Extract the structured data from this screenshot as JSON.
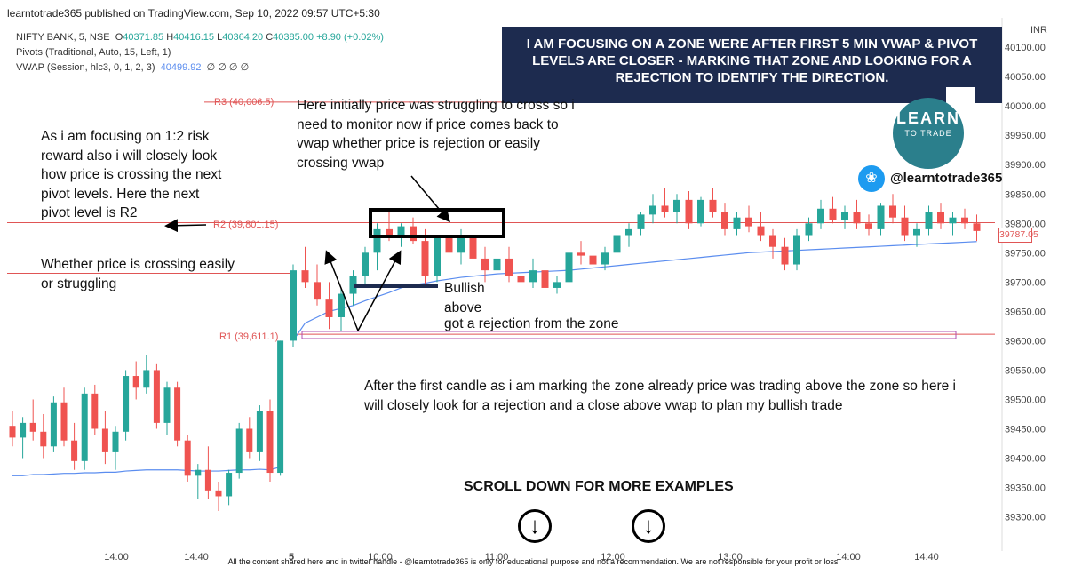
{
  "header": "learntotrade365 published on TradingView.com, Sep 10, 2022 09:57 UTC+5:30",
  "legend": {
    "symbol": "NIFTY BANK, 5, NSE",
    "o_label": "O",
    "o_value": "40371.85",
    "h_label": "H",
    "h_value": "40416.15",
    "l_label": "L",
    "l_value": "40364.20",
    "c_label": "C",
    "c_value": "40385.00",
    "change": "+8.90 (+0.02%)",
    "pivots": "Pivots (Traditional, Auto, 15, Left, 1)",
    "vwap": "VWAP (Session, hlc3, 0, 1, 2, 3)",
    "vwap_value": "40499.92",
    "vwap_extra": "∅ ∅ ∅ ∅"
  },
  "banner": "I AM FOCUSING ON A ZONE WERE AFTER FIRST 5 MIN VWAP & PIVOT LEVELS ARE CLOSER - MARKING THAT ZONE AND LOOKING FOR A REJECTION TO IDENTIFY THE DIRECTION.",
  "notes": {
    "left1": "As i am focusing on 1:2 risk reward also i will closely look how price is crossing the next pivot levels. Here the next pivot level is R2",
    "left2": "Whether price is crossing easily or struggling",
    "top": "Here initially price was struggling to cross so i need to monitor now if price comes back to vwap whether price is rejection or easily crossing vwap",
    "bullish": "Bullish above",
    "rejection": "got a rejection from the zone",
    "bottom": "After the first candle as i am marking the zone already price was trading above the zone so here i will closely look for a rejection and a close above vwap to plan my bullish trade"
  },
  "pivots": [
    {
      "label": "R3 (40,006.5)",
      "value": 40006.5
    },
    {
      "label": "R2 (39,801.15)",
      "value": 39801.15
    },
    {
      "label": "R1 (39,611.1)",
      "value": 39611.1
    }
  ],
  "brand": {
    "logo_line1": "LEARN",
    "logo_line2": "TO TRADE",
    "twitter_icon": "twitter-bird-icon",
    "handle": "@learntotrade365"
  },
  "scroll_text": "SCROLL DOWN FOR MORE EXAMPLES",
  "down_icon_glyph": "↓",
  "current_price": "39787.05",
  "currency": "INR",
  "footer": "All the content shared here and in twitter handle - @learntotrade365 is only for educational purpose and not a recommendation. We are not responsible for your profit or loss",
  "colors": {
    "up": "#26a69a",
    "down": "#ef5350",
    "vwap": "#5b8def",
    "pivot": "#e05555",
    "zone": "#b04fb0",
    "banner": "#1d2b4f"
  },
  "chart_data": {
    "type": "candlestick",
    "y_ticks": [
      40100,
      40050,
      40000,
      39950,
      39900,
      39850,
      39800,
      39750,
      39700,
      39650,
      39600,
      39550,
      39500,
      39450,
      39400,
      39350,
      39300
    ],
    "ylim": [
      39260,
      40135
    ],
    "x_ticks": [
      "14:00",
      "14:40",
      "5",
      "10:00",
      "11:00",
      "12:00",
      "13:00",
      "14:00",
      "14:40"
    ],
    "candles_day1": [
      [
        39455,
        39480,
        39420,
        39435
      ],
      [
        39435,
        39470,
        39400,
        39460
      ],
      [
        39460,
        39500,
        39430,
        39445
      ],
      [
        39445,
        39475,
        39400,
        39420
      ],
      [
        39420,
        39505,
        39410,
        39495
      ],
      [
        39495,
        39520,
        39420,
        39430
      ],
      [
        39430,
        39460,
        39380,
        39395
      ],
      [
        39395,
        39520,
        39380,
        39510
      ],
      [
        39510,
        39525,
        39440,
        39450
      ],
      [
        39450,
        39480,
        39390,
        39410
      ],
      [
        39410,
        39455,
        39380,
        39445
      ],
      [
        39445,
        39550,
        39430,
        39540
      ],
      [
        39540,
        39565,
        39500,
        39520
      ],
      [
        39520,
        39575,
        39510,
        39550
      ],
      [
        39550,
        39560,
        39450,
        39460
      ],
      [
        39460,
        39530,
        39440,
        39520
      ],
      [
        39520,
        39530,
        39420,
        39430
      ],
      [
        39430,
        39440,
        39360,
        39370
      ],
      [
        39370,
        39390,
        39330,
        39380
      ],
      [
        39380,
        39420,
        39330,
        39345
      ],
      [
        39345,
        39360,
        39310,
        39335
      ],
      [
        39335,
        39380,
        39320,
        39375
      ],
      [
        39375,
        39460,
        39365,
        39450
      ],
      [
        39450,
        39470,
        39400,
        39410
      ],
      [
        39410,
        39490,
        39395,
        39480
      ],
      [
        39480,
        39500,
        39360,
        39375
      ],
      [
        39375,
        39600,
        39370,
        39600
      ]
    ],
    "candles_day2": [
      [
        39600,
        39730,
        39590,
        39720
      ],
      [
        39720,
        39760,
        39690,
        39700
      ],
      [
        39700,
        39730,
        39660,
        39670
      ],
      [
        39670,
        39700,
        39620,
        39640
      ],
      [
        39640,
        39690,
        39615,
        39680
      ],
      [
        39680,
        39720,
        39660,
        39710
      ],
      [
        39710,
        39760,
        39690,
        39750
      ],
      [
        39750,
        39800,
        39720,
        39790
      ],
      [
        39790,
        39820,
        39770,
        39780
      ],
      [
        39780,
        39800,
        39760,
        39795
      ],
      [
        39795,
        39810,
        39765,
        39770
      ],
      [
        39770,
        39790,
        39690,
        39710
      ],
      [
        39710,
        39780,
        39700,
        39775
      ],
      [
        39775,
        39795,
        39740,
        39750
      ],
      [
        39750,
        39790,
        39730,
        39780
      ],
      [
        39780,
        39800,
        39720,
        39740
      ],
      [
        39740,
        39760,
        39700,
        39720
      ],
      [
        39720,
        39750,
        39710,
        39740
      ],
      [
        39740,
        39760,
        39700,
        39710
      ],
      [
        39710,
        39730,
        39690,
        39700
      ],
      [
        39700,
        39740,
        39690,
        39720
      ],
      [
        39720,
        39730,
        39685,
        39690
      ],
      [
        39690,
        39710,
        39680,
        39700
      ],
      [
        39700,
        39760,
        39690,
        39750
      ],
      [
        39750,
        39770,
        39730,
        39745
      ],
      [
        39745,
        39770,
        39725,
        39730
      ],
      [
        39730,
        39760,
        39720,
        39750
      ],
      [
        39750,
        39790,
        39740,
        39780
      ],
      [
        39780,
        39800,
        39760,
        39790
      ],
      [
        39790,
        39820,
        39780,
        39815
      ],
      [
        39815,
        39850,
        39800,
        39830
      ],
      [
        39830,
        39860,
        39810,
        39820
      ],
      [
        39820,
        39850,
        39800,
        39840
      ],
      [
        39840,
        39855,
        39790,
        39800
      ],
      [
        39800,
        39845,
        39795,
        39840
      ],
      [
        39840,
        39860,
        39810,
        39820
      ],
      [
        39820,
        39835,
        39780,
        39790
      ],
      [
        39790,
        39820,
        39780,
        39810
      ],
      [
        39810,
        39830,
        39785,
        39795
      ],
      [
        39795,
        39820,
        39770,
        39780
      ],
      [
        39780,
        39790,
        39740,
        39760
      ],
      [
        39760,
        39775,
        39720,
        39730
      ],
      [
        39730,
        39790,
        39720,
        39780
      ],
      [
        39780,
        39810,
        39770,
        39800
      ],
      [
        39800,
        39840,
        39790,
        39825
      ],
      [
        39825,
        39845,
        39800,
        39805
      ],
      [
        39805,
        39830,
        39790,
        39820
      ],
      [
        39820,
        39840,
        39790,
        39800
      ],
      [
        39800,
        39815,
        39780,
        39790
      ],
      [
        39790,
        39835,
        39780,
        39830
      ],
      [
        39830,
        39850,
        39800,
        39810
      ],
      [
        39810,
        39830,
        39770,
        39780
      ],
      [
        39780,
        39800,
        39760,
        39790
      ],
      [
        39790,
        39830,
        39780,
        39820
      ],
      [
        39820,
        39835,
        39790,
        39800
      ],
      [
        39800,
        39820,
        39780,
        39810
      ],
      [
        39810,
        39825,
        39790,
        39800
      ],
      [
        39800,
        39815,
        39770,
        39787
      ]
    ],
    "vwap_day1": [
      39370,
      39370,
      39372,
      39372,
      39373,
      39374,
      39374,
      39375,
      39375,
      39376,
      39376,
      39378,
      39379,
      39380,
      39380,
      39380,
      39380,
      39379,
      39378,
      39378,
      39378,
      39379,
      39380,
      39380,
      39381,
      39380,
      39385
    ],
    "vwap_day2": [
      39600,
      39630,
      39640,
      39650,
      39655,
      39660,
      39668,
      39675,
      39682,
      39690,
      39695,
      39698,
      39702,
      39705,
      39708,
      39710,
      39712,
      39714,
      39715,
      39716,
      39717,
      39718,
      39719,
      39720,
      39722,
      39724,
      39726,
      39728,
      39730,
      39732,
      39734,
      39736,
      39738,
      39740,
      39742,
      39744,
      39746,
      39748,
      39750,
      39751,
      39752,
      39753,
      39754,
      39755,
      39756,
      39757,
      39758,
      39759,
      39760,
      39761,
      39762,
      39763,
      39764,
      39765,
      39766,
      39767,
      39768,
      39769
    ]
  }
}
